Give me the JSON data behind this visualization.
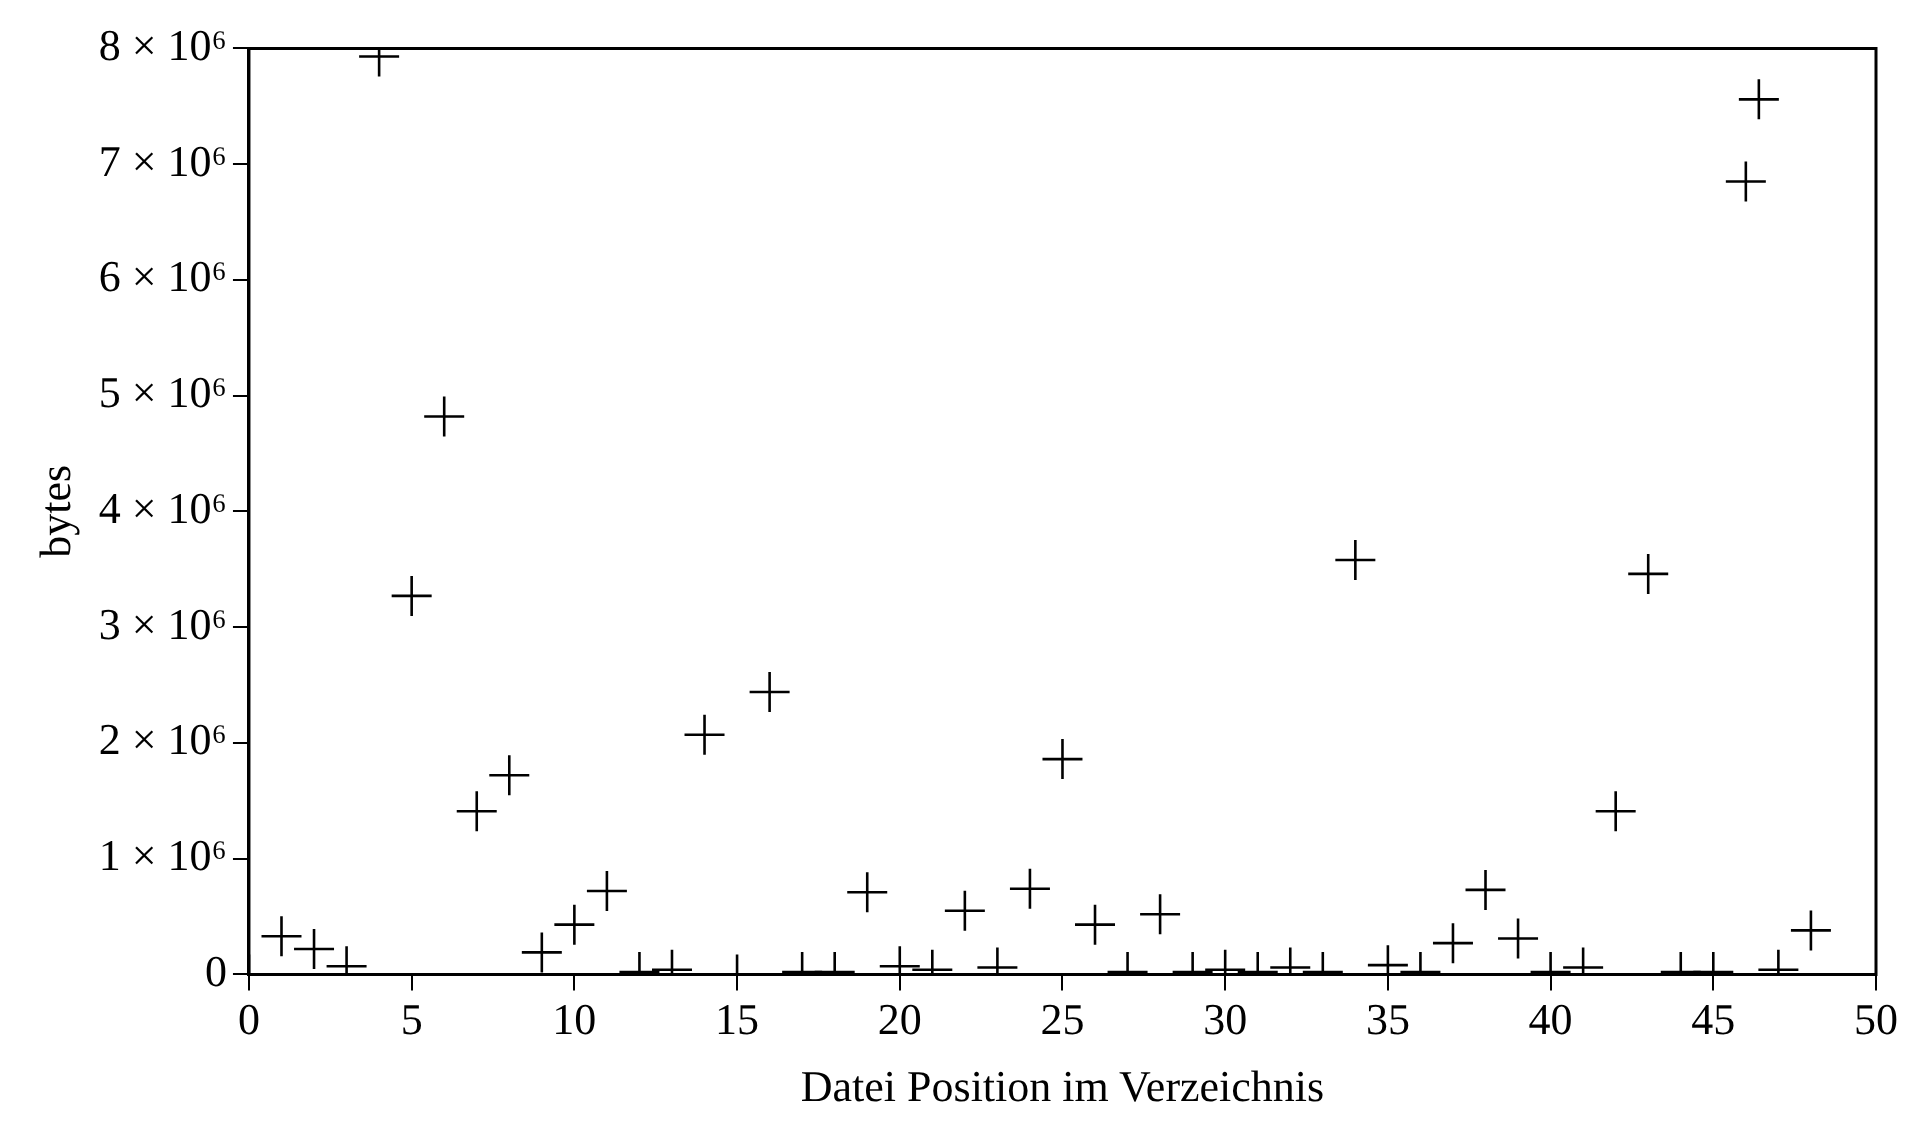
{
  "chart_data": {
    "type": "scatter",
    "xlabel": "Datei Position im Verzeichnis",
    "ylabel": "bytes",
    "x": [
      0,
      1,
      2,
      3,
      4,
      5,
      6,
      7,
      8,
      9,
      10,
      11,
      12,
      13,
      14,
      15,
      16,
      17,
      18,
      19,
      20,
      21,
      22,
      23,
      24,
      25,
      26,
      27,
      28,
      29,
      30,
      31,
      32,
      33,
      34,
      35,
      36,
      37,
      38,
      39,
      40,
      41,
      42,
      43,
      44,
      45,
      46,
      46.4,
      47,
      48
    ],
    "series": [
      {
        "color": "#000000",
        "values": [
          0,
          330000,
          220000,
          70000,
          7930000,
          3270000,
          4820000,
          1410000,
          1720000,
          190000,
          430000,
          720000,
          20000,
          40000,
          2070000,
          0,
          2440000,
          20000,
          20000,
          710000,
          70000,
          40000,
          550000,
          60000,
          740000,
          1860000,
          430000,
          20000,
          520000,
          20000,
          40000,
          20000,
          60000,
          20000,
          3580000,
          80000,
          20000,
          270000,
          730000,
          310000,
          20000,
          60000,
          1410000,
          3460000,
          20000,
          20000,
          6850000,
          7560000,
          40000,
          380000
        ]
      }
    ],
    "xlim": [
      0,
      50
    ],
    "xticks": [
      0,
      5,
      10,
      15,
      20,
      25,
      30,
      35,
      40,
      45,
      50
    ],
    "ylim": [
      0,
      8000000
    ],
    "yticks": [
      {
        "value": 0,
        "label": "0"
      },
      {
        "value": 1000000,
        "label": "1 × 10⁶"
      },
      {
        "value": 2000000,
        "label": "2 × 10⁶"
      },
      {
        "value": 3000000,
        "label": "3 × 10⁶"
      },
      {
        "value": 4000000,
        "label": "4 × 10⁶"
      },
      {
        "value": 5000000,
        "label": "5 × 10⁶"
      },
      {
        "value": 6000000,
        "label": "6 × 10⁶"
      },
      {
        "value": 7000000,
        "label": "7 × 10⁶"
      },
      {
        "value": 8000000,
        "label": "8 × 10⁶"
      }
    ],
    "marker": "cross",
    "grid": false,
    "legend": false
  }
}
